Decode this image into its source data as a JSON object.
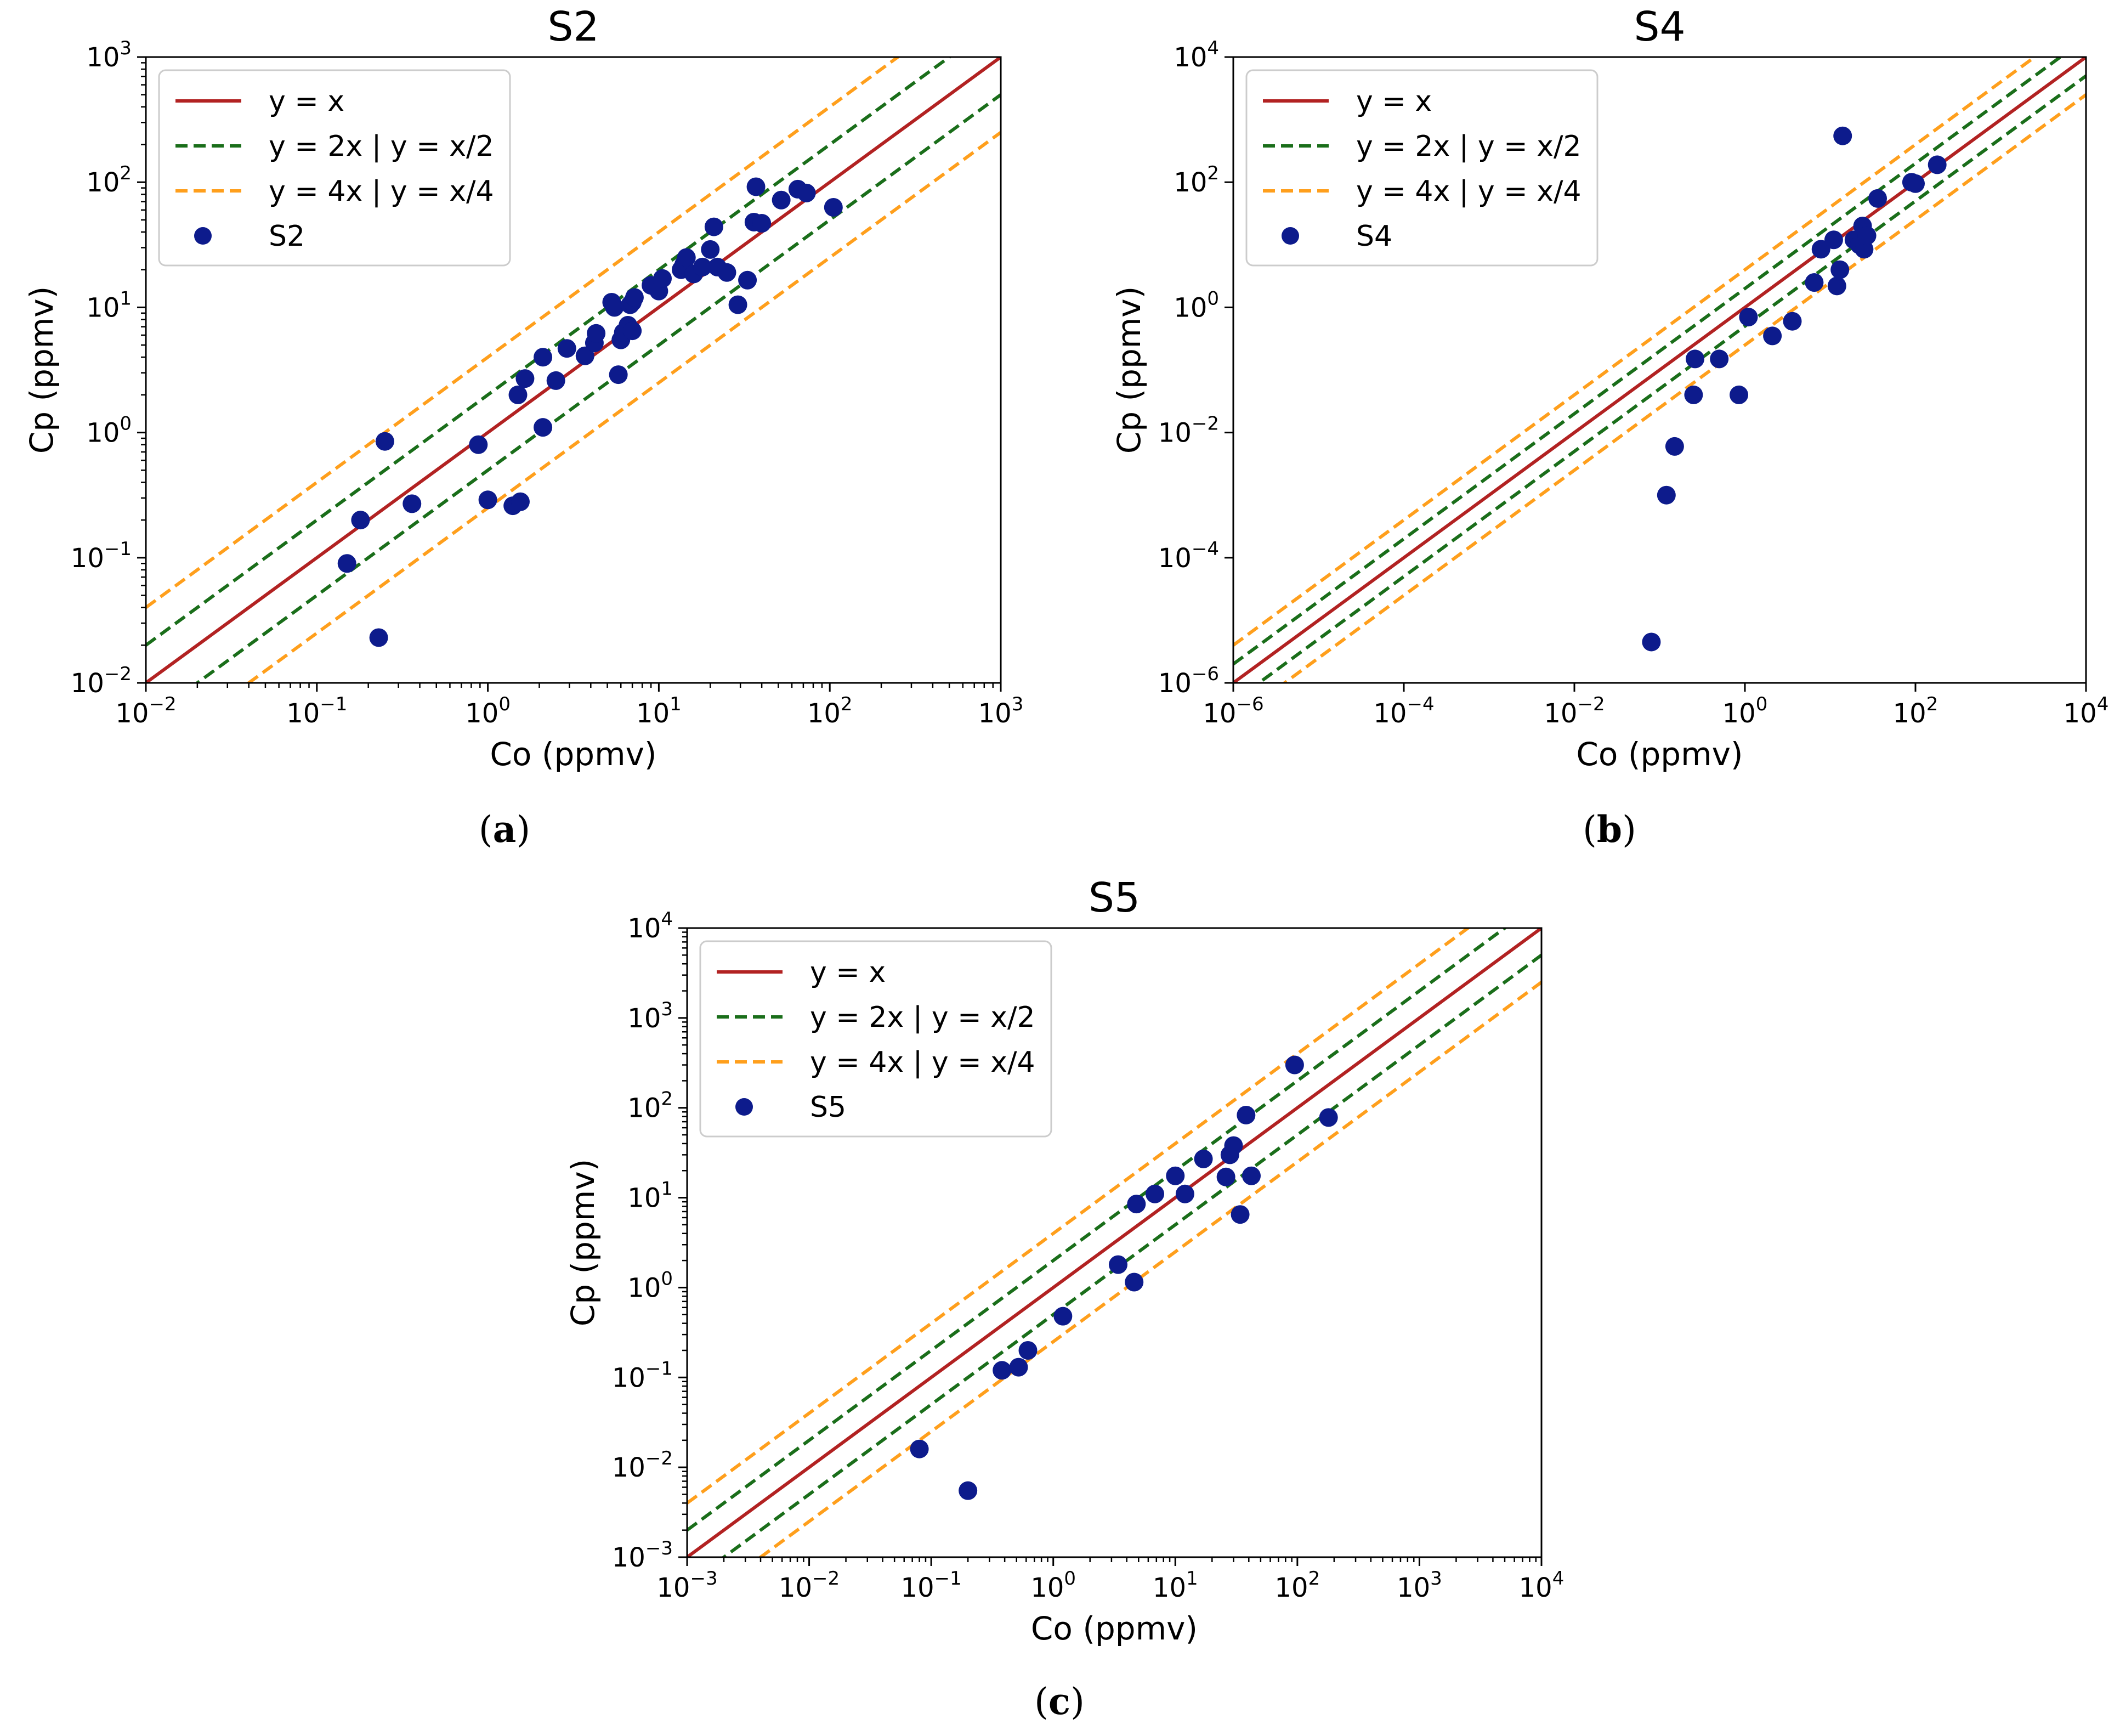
{
  "styles": {
    "identity_color": "#b22222",
    "factor2_color": "#1a6e1a",
    "factor4_color": "#ff9f1c",
    "point_color": "#0d1b8c"
  },
  "chart_data": [
    {
      "type": "scatter",
      "id": "a",
      "caption": "a",
      "title": "S2",
      "xlabel": "Co (ppmv)",
      "ylabel": "Cp (ppmv)",
      "xscale": "log",
      "yscale": "log",
      "xlim_exp": [
        -2,
        3
      ],
      "ylim_exp": [
        -2,
        3
      ],
      "xticks": [
        {
          "base": "10",
          "exp": "−2"
        },
        {
          "base": "10",
          "exp": "−1"
        },
        {
          "base": "10",
          "exp": "0"
        },
        {
          "base": "10",
          "exp": "1"
        },
        {
          "base": "10",
          "exp": "2"
        },
        {
          "base": "10",
          "exp": "3"
        }
      ],
      "yticks": [
        {
          "base": "10",
          "exp": "−2"
        },
        {
          "base": "10",
          "exp": "−1"
        },
        {
          "base": "10",
          "exp": "0"
        },
        {
          "base": "10",
          "exp": "1"
        },
        {
          "base": "10",
          "exp": "2"
        },
        {
          "base": "10",
          "exp": "3"
        }
      ],
      "legend": {
        "position": "top-left",
        "identity": "y = x",
        "factor2": "y = 2x | y = x/2",
        "factor4": "y = 4x | y = x/4",
        "series": "S2"
      },
      "points": [
        [
          0.15,
          0.09
        ],
        [
          0.18,
          0.2
        ],
        [
          0.23,
          0.023
        ],
        [
          0.25,
          0.85
        ],
        [
          0.36,
          0.27
        ],
        [
          0.88,
          0.8
        ],
        [
          1.0,
          0.29
        ],
        [
          1.4,
          0.26
        ],
        [
          1.55,
          0.28
        ],
        [
          1.5,
          2.0
        ],
        [
          1.65,
          2.7
        ],
        [
          2.1,
          1.1
        ],
        [
          2.1,
          4.0
        ],
        [
          2.5,
          2.6
        ],
        [
          2.9,
          4.7
        ],
        [
          3.7,
          4.1
        ],
        [
          4.2,
          5.2
        ],
        [
          4.3,
          6.2
        ],
        [
          5.3,
          11.0
        ],
        [
          5.5,
          10.0
        ],
        [
          5.8,
          2.9
        ],
        [
          6.0,
          5.5
        ],
        [
          6.2,
          6.3
        ],
        [
          6.6,
          7.2
        ],
        [
          6.8,
          10.5
        ],
        [
          7.0,
          6.5
        ],
        [
          7.0,
          11.0
        ],
        [
          7.2,
          12.0
        ],
        [
          9.0,
          15.0
        ],
        [
          10.0,
          13.5
        ],
        [
          10.5,
          17.0
        ],
        [
          13.5,
          20.0
        ],
        [
          14.0,
          22.0
        ],
        [
          14.5,
          25.0
        ],
        [
          16.0,
          18.5
        ],
        [
          18.0,
          21.0
        ],
        [
          20.0,
          29.0
        ],
        [
          21.0,
          44.0
        ],
        [
          22.0,
          21.0
        ],
        [
          25.0,
          19.0
        ],
        [
          29.0,
          10.5
        ],
        [
          33.0,
          16.5
        ],
        [
          36.0,
          48.0
        ],
        [
          37.0,
          92.0
        ],
        [
          40.0,
          47.0
        ],
        [
          52.0,
          72.0
        ],
        [
          65.0,
          88.0
        ],
        [
          73.0,
          82.0
        ],
        [
          105.0,
          63.0
        ]
      ]
    },
    {
      "type": "scatter",
      "id": "b",
      "caption": "b",
      "title": "S4",
      "xlabel": "Co (ppmv)",
      "ylabel": "Cp (ppmv)",
      "xscale": "log",
      "yscale": "log",
      "xlim_exp": [
        -6,
        4
      ],
      "ylim_exp": [
        -6,
        4
      ],
      "xticks": [
        {
          "base": "10",
          "exp": "−6"
        },
        {
          "base": "10",
          "exp": "−4"
        },
        {
          "base": "10",
          "exp": "−2"
        },
        {
          "base": "10",
          "exp": "0"
        },
        {
          "base": "10",
          "exp": "2"
        },
        {
          "base": "10",
          "exp": "4"
        }
      ],
      "yticks": [
        {
          "base": "10",
          "exp": "−6"
        },
        {
          "base": "10",
          "exp": "−4"
        },
        {
          "base": "10",
          "exp": "−2"
        },
        {
          "base": "10",
          "exp": "0"
        },
        {
          "base": "10",
          "exp": "2"
        },
        {
          "base": "10",
          "exp": "4"
        }
      ],
      "legend": {
        "position": "top-left",
        "identity": "y = x",
        "factor2": "y = 2x | y = x/2",
        "factor4": "y = 4x | y = x/4",
        "series": "S4"
      },
      "points": [
        [
          0.08,
          4.5e-06
        ],
        [
          0.12,
          0.001
        ],
        [
          0.15,
          0.006
        ],
        [
          0.25,
          0.04
        ],
        [
          0.26,
          0.15
        ],
        [
          0.5,
          0.15
        ],
        [
          0.85,
          0.04
        ],
        [
          1.1,
          0.7
        ],
        [
          2.1,
          0.35
        ],
        [
          3.6,
          0.6
        ],
        [
          6.5,
          2.5
        ],
        [
          7.8,
          8.5
        ],
        [
          11.0,
          12.0
        ],
        [
          12.0,
          2.2
        ],
        [
          13.0,
          4.0
        ],
        [
          14.0,
          550.0
        ],
        [
          19.0,
          12.0
        ],
        [
          22.0,
          10.0
        ],
        [
          24.0,
          20.0
        ],
        [
          25.0,
          8.5
        ],
        [
          27.0,
          14.0
        ],
        [
          36.0,
          55.0
        ],
        [
          90.0,
          100.0
        ],
        [
          100.0,
          95.0
        ],
        [
          180.0,
          190.0
        ]
      ]
    },
    {
      "type": "scatter",
      "id": "c",
      "caption": "c",
      "title": "S5",
      "xlabel": "Co (ppmv)",
      "ylabel": "Cp (ppmv)",
      "xscale": "log",
      "yscale": "log",
      "xlim_exp": [
        -3,
        4
      ],
      "ylim_exp": [
        -3,
        4
      ],
      "xticks": [
        {
          "base": "10",
          "exp": "−3"
        },
        {
          "base": "10",
          "exp": "−2"
        },
        {
          "base": "10",
          "exp": "−1"
        },
        {
          "base": "10",
          "exp": "0"
        },
        {
          "base": "10",
          "exp": "1"
        },
        {
          "base": "10",
          "exp": "2"
        },
        {
          "base": "10",
          "exp": "3"
        },
        {
          "base": "10",
          "exp": "4"
        }
      ],
      "yticks": [
        {
          "base": "10",
          "exp": "−3"
        },
        {
          "base": "10",
          "exp": "−2"
        },
        {
          "base": "10",
          "exp": "−1"
        },
        {
          "base": "10",
          "exp": "0"
        },
        {
          "base": "10",
          "exp": "1"
        },
        {
          "base": "10",
          "exp": "2"
        },
        {
          "base": "10",
          "exp": "3"
        },
        {
          "base": "10",
          "exp": "4"
        }
      ],
      "legend": {
        "position": "top-left",
        "identity": "y = x",
        "factor2": "y = 2x | y = x/2",
        "factor4": "y = 4x | y = x/4",
        "series": "S5"
      },
      "points": [
        [
          0.08,
          0.016
        ],
        [
          0.2,
          0.0055
        ],
        [
          0.38,
          0.12
        ],
        [
          0.52,
          0.13
        ],
        [
          0.62,
          0.2
        ],
        [
          1.2,
          0.48
        ],
        [
          3.4,
          1.8
        ],
        [
          4.6,
          1.15
        ],
        [
          4.8,
          8.5
        ],
        [
          6.8,
          11.0
        ],
        [
          10.0,
          17.5
        ],
        [
          12.0,
          11.0
        ],
        [
          17.0,
          27.0
        ],
        [
          26.0,
          17.0
        ],
        [
          28.0,
          30.0
        ],
        [
          30.0,
          38.0
        ],
        [
          34.0,
          6.5
        ],
        [
          38.0,
          83.0
        ],
        [
          42.0,
          17.5
        ],
        [
          95.0,
          300.0
        ],
        [
          180.0,
          78.0
        ]
      ]
    }
  ]
}
